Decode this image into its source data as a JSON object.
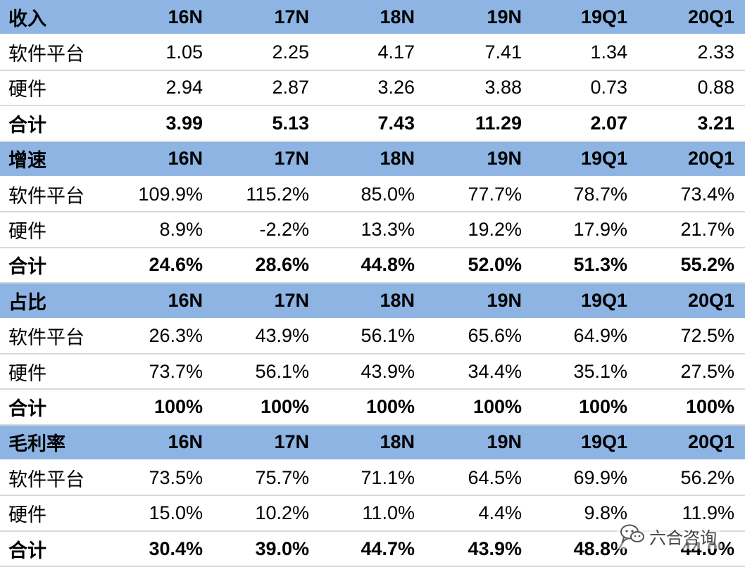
{
  "sections": [
    {
      "header": {
        "label": "收入",
        "cols": [
          "16N",
          "17N",
          "18N",
          "19N",
          "19Q1",
          "20Q1"
        ]
      },
      "rows": [
        {
          "label": "软件平台",
          "values": [
            "1.05",
            "2.25",
            "4.17",
            "7.41",
            "1.34",
            "2.33"
          ]
        },
        {
          "label": "硬件",
          "values": [
            "2.94",
            "2.87",
            "3.26",
            "3.88",
            "0.73",
            "0.88"
          ]
        },
        {
          "label": "合计",
          "values": [
            "3.99",
            "5.13",
            "7.43",
            "11.29",
            "2.07",
            "3.21"
          ]
        }
      ]
    },
    {
      "header": {
        "label": "增速",
        "cols": [
          "16N",
          "17N",
          "18N",
          "19N",
          "19Q1",
          "20Q1"
        ]
      },
      "rows": [
        {
          "label": "软件平台",
          "values": [
            "109.9%",
            "115.2%",
            "85.0%",
            "77.7%",
            "78.7%",
            "73.4%"
          ]
        },
        {
          "label": "硬件",
          "values": [
            "8.9%",
            "-2.2%",
            "13.3%",
            "19.2%",
            "17.9%",
            "21.7%"
          ]
        },
        {
          "label": "合计",
          "values": [
            "24.6%",
            "28.6%",
            "44.8%",
            "52.0%",
            "51.3%",
            "55.2%"
          ]
        }
      ]
    },
    {
      "header": {
        "label": "占比",
        "cols": [
          "16N",
          "17N",
          "18N",
          "19N",
          "19Q1",
          "20Q1"
        ]
      },
      "rows": [
        {
          "label": "软件平台",
          "values": [
            "26.3%",
            "43.9%",
            "56.1%",
            "65.6%",
            "64.9%",
            "72.5%"
          ]
        },
        {
          "label": "硬件",
          "values": [
            "73.7%",
            "56.1%",
            "43.9%",
            "34.4%",
            "35.1%",
            "27.5%"
          ]
        },
        {
          "label": "合计",
          "values": [
            "100%",
            "100%",
            "100%",
            "100%",
            "100%",
            "100%"
          ]
        }
      ]
    },
    {
      "header": {
        "label": "毛利率",
        "cols": [
          "16N",
          "17N",
          "18N",
          "19N",
          "19Q1",
          "20Q1"
        ]
      },
      "rows": [
        {
          "label": "软件平台",
          "values": [
            "73.5%",
            "75.7%",
            "71.1%",
            "64.5%",
            "69.9%",
            "56.2%"
          ]
        },
        {
          "label": "硬件",
          "values": [
            "15.0%",
            "10.2%",
            "11.0%",
            "4.4%",
            "9.8%",
            "11.9%"
          ]
        },
        {
          "label": "合计",
          "values": [
            "30.4%",
            "39.0%",
            "44.7%",
            "43.9%",
            "48.8%",
            "44.0%"
          ]
        }
      ]
    }
  ],
  "watermark": {
    "text": "六合咨询",
    "icon": "wechat-icon"
  },
  "colors": {
    "header_bg": "#8db4e2",
    "row_border": "#d9d9d9"
  }
}
